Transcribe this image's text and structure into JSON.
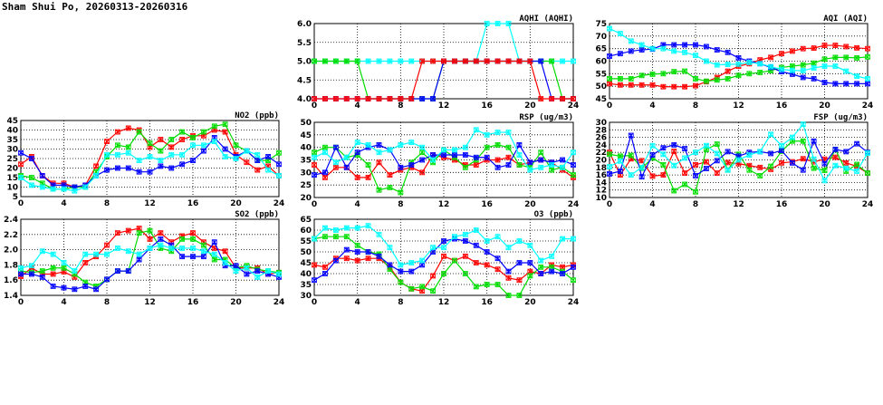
{
  "title": "Sham Shui Po, 20260313-20260316",
  "series_colors": [
    "#ff0000",
    "#00dd00",
    "#0000ff",
    "#00ffff"
  ],
  "chart_data": [
    {
      "id": "no2",
      "type": "line",
      "title": "NO2 (ppb)",
      "xlim": [
        0,
        24
      ],
      "xticks": [
        0,
        4,
        8,
        12,
        16,
        20,
        24
      ],
      "ylim": [
        5,
        45
      ],
      "yticks": [
        5,
        10,
        15,
        20,
        25,
        30,
        35,
        40,
        45
      ],
      "grid": true,
      "series": [
        {
          "name": "red",
          "values": [
            22,
            26,
            16,
            12,
            12,
            10,
            11,
            21,
            34,
            39,
            41,
            40,
            31,
            35,
            31,
            35,
            37,
            37,
            40,
            39,
            27,
            23,
            19,
            21,
            16
          ]
        },
        {
          "name": "green",
          "values": [
            16,
            15,
            12,
            9,
            9,
            10,
            10,
            18,
            26,
            32,
            31,
            39,
            33,
            29,
            35,
            39,
            36,
            39,
            42,
            43,
            32,
            29,
            24,
            24,
            28
          ]
        },
        {
          "name": "blue",
          "values": [
            28,
            25,
            16,
            11,
            11,
            10,
            11,
            16,
            19,
            20,
            20,
            18,
            18,
            21,
            20,
            22,
            24,
            29,
            36,
            30,
            26,
            29,
            24,
            26,
            22
          ]
        },
        {
          "name": "cyan",
          "values": [
            15,
            11,
            10,
            9,
            9,
            8,
            10,
            16,
            27,
            27,
            28,
            24,
            26,
            24,
            27,
            27,
            32,
            32,
            34,
            26,
            25,
            29,
            27,
            19,
            16
          ]
        }
      ]
    },
    {
      "id": "so2",
      "type": "line",
      "title": "SO2 (ppb)",
      "xlim": [
        0,
        24
      ],
      "xticks": [
        0,
        4,
        8,
        12,
        16,
        20,
        24
      ],
      "ylim": [
        1.4,
        2.4
      ],
      "yticks": [
        1.4,
        1.6,
        1.8,
        2.0,
        2.2,
        2.4
      ],
      "grid": true,
      "series": [
        {
          "name": "red",
          "values": [
            1.65,
            1.76,
            1.68,
            1.68,
            1.71,
            1.64,
            1.83,
            1.91,
            2.06,
            2.22,
            2.25,
            2.28,
            2.14,
            2.22,
            2.1,
            2.18,
            2.22,
            2.1,
            2.02,
            1.98,
            1.76,
            1.76,
            1.76,
            1.68,
            1.7
          ]
        },
        {
          "name": "green",
          "values": [
            1.72,
            1.7,
            1.72,
            1.76,
            1.76,
            1.68,
            1.57,
            1.52,
            1.61,
            1.72,
            1.72,
            2.22,
            2.25,
            2.02,
            1.98,
            2.14,
            2.14,
            2.06,
            1.87,
            1.87,
            1.76,
            1.79,
            1.74,
            1.72,
            1.7
          ]
        },
        {
          "name": "blue",
          "values": [
            1.68,
            1.68,
            1.64,
            1.52,
            1.5,
            1.48,
            1.52,
            1.48,
            1.61,
            1.72,
            1.72,
            1.87,
            2.02,
            2.14,
            2.06,
            1.91,
            1.91,
            1.91,
            2.1,
            1.79,
            1.79,
            1.68,
            1.72,
            1.68,
            1.64
          ]
        },
        {
          "name": "cyan",
          "values": [
            1.76,
            1.79,
            1.98,
            1.94,
            1.83,
            1.72,
            1.94,
            1.94,
            1.94,
            2.02,
            1.98,
            1.94,
            2.02,
            2.06,
            2.02,
            2.02,
            2.02,
            1.98,
            1.94,
            1.83,
            1.72,
            1.76,
            1.64,
            1.72,
            1.68
          ]
        }
      ]
    },
    {
      "id": "aqhi",
      "type": "line",
      "title": "AQHI (AQHI)",
      "xlim": [
        0,
        24
      ],
      "xticks": [
        0,
        4,
        8,
        12,
        16,
        20,
        24
      ],
      "ylim": [
        4,
        6
      ],
      "yticks": [
        4.0,
        4.5,
        5.0,
        5.5,
        6.0
      ],
      "grid": true,
      "series": [
        {
          "name": "cyan",
          "values": [
            5,
            5,
            5,
            5,
            5,
            5,
            5,
            5,
            5,
            5,
            5,
            5,
            5,
            5,
            5,
            5,
            6,
            6,
            6,
            5,
            5,
            5,
            5,
            5,
            5
          ]
        },
        {
          "name": "green",
          "values": [
            5,
            5,
            5,
            5,
            5,
            4,
            4,
            4,
            4,
            4,
            4,
            4,
            5,
            5,
            5,
            5,
            5,
            5,
            5,
            5,
            5,
            5,
            5,
            4,
            4
          ]
        },
        {
          "name": "blue",
          "values": [
            4,
            4,
            4,
            4,
            4,
            4,
            4,
            4,
            4,
            4,
            4,
            4,
            5,
            5,
            5,
            5,
            5,
            5,
            5,
            5,
            5,
            5,
            4,
            4,
            4
          ]
        },
        {
          "name": "red",
          "values": [
            4,
            4,
            4,
            4,
            4,
            4,
            4,
            4,
            4,
            4,
            5,
            5,
            5,
            5,
            5,
            5,
            5,
            5,
            5,
            5,
            5,
            4,
            4,
            4,
            4
          ]
        }
      ]
    },
    {
      "id": "rsp",
      "type": "line",
      "title": "RSP (ug/m3)",
      "xlim": [
        0,
        24
      ],
      "xticks": [
        0,
        4,
        8,
        12,
        16,
        20,
        24
      ],
      "ylim": [
        20,
        50
      ],
      "yticks": [
        20,
        25,
        30,
        35,
        40,
        45,
        50
      ],
      "grid": true,
      "series": [
        {
          "name": "red",
          "values": [
            33,
            28,
            32,
            32,
            28,
            28,
            34,
            29,
            31,
            32,
            30,
            37,
            36,
            35,
            33,
            33,
            35,
            35,
            36,
            33,
            34,
            35,
            34,
            31,
            28
          ]
        },
        {
          "name": "green",
          "values": [
            38,
            40,
            40,
            36,
            37,
            33,
            23,
            24,
            22,
            34,
            38,
            34,
            39,
            36,
            32,
            35,
            40,
            41,
            40,
            33,
            32,
            38,
            31,
            32,
            29
          ]
        },
        {
          "name": "blue",
          "values": [
            29,
            30,
            40,
            32,
            38,
            40,
            41,
            39,
            32,
            33,
            35,
            37,
            37,
            37,
            37,
            36,
            36,
            32,
            33,
            41,
            34,
            35,
            34,
            35,
            33
          ]
        },
        {
          "name": "cyan",
          "values": [
            36,
            38,
            34,
            36,
            42,
            41,
            38,
            39,
            41,
            42,
            40,
            35,
            39,
            39,
            40,
            47,
            45,
            46,
            46,
            37,
            31,
            32,
            33,
            32,
            38
          ]
        }
      ]
    },
    {
      "id": "o3",
      "type": "line",
      "title": "O3 (ppb)",
      "xlim": [
        0,
        24
      ],
      "xticks": [
        0,
        4,
        8,
        12,
        16,
        20,
        24
      ],
      "ylim": [
        30,
        65
      ],
      "yticks": [
        30,
        35,
        40,
        45,
        50,
        55,
        60,
        65
      ],
      "grid": true,
      "series": [
        {
          "name": "red",
          "values": [
            44,
            43,
            47,
            47,
            46,
            47,
            47,
            43,
            36,
            33,
            32,
            39,
            48,
            46,
            48,
            45,
            44,
            42,
            38,
            37,
            41,
            40,
            44,
            43,
            44
          ]
        },
        {
          "name": "green",
          "values": [
            56,
            57,
            57,
            57,
            53,
            50,
            49,
            42,
            36,
            33,
            34,
            32,
            40,
            46,
            40,
            34,
            35,
            35,
            30,
            30,
            39,
            43,
            43,
            41,
            37
          ]
        },
        {
          "name": "blue",
          "values": [
            37,
            40,
            46,
            51,
            50,
            50,
            48,
            44,
            41,
            41,
            44,
            50,
            55,
            56,
            55,
            53,
            50,
            47,
            41,
            45,
            45,
            40,
            41,
            40,
            43
          ]
        },
        {
          "name": "cyan",
          "values": [
            56,
            61,
            60,
            61,
            61,
            62,
            58,
            52,
            44,
            45,
            46,
            52,
            52,
            57,
            58,
            60,
            55,
            57,
            52,
            55,
            53,
            46,
            48,
            56,
            56
          ]
        }
      ]
    },
    {
      "id": "aqi",
      "type": "line",
      "title": "AQI (AQI)",
      "xlim": [
        0,
        24
      ],
      "xticks": [
        0,
        4,
        8,
        12,
        16,
        20,
        24
      ],
      "ylim": [
        45,
        75
      ],
      "yticks": [
        45,
        50,
        55,
        60,
        65,
        70,
        75
      ],
      "grid": true,
      "series": [
        {
          "name": "red",
          "values": [
            51,
            50.5,
            50.5,
            50.5,
            50.5,
            49.8,
            49.8,
            49.8,
            50.2,
            51.8,
            53.5,
            56,
            58,
            59,
            60.5,
            61.5,
            63,
            64,
            65,
            65.2,
            66.3,
            66.3,
            65.8,
            65.3,
            65
          ]
        },
        {
          "name": "green",
          "values": [
            53,
            53,
            53,
            54.3,
            54.8,
            55,
            55.8,
            56,
            53,
            52,
            52.5,
            53,
            54.3,
            55,
            55.5,
            56.2,
            57.5,
            58,
            58.5,
            59.2,
            60.8,
            61.5,
            61.5,
            61.3,
            61.7
          ]
        },
        {
          "name": "blue",
          "values": [
            62,
            63,
            64,
            64.5,
            64.8,
            66.5,
            66.5,
            66.5,
            66.5,
            65.8,
            64.5,
            63.5,
            61.3,
            60,
            59,
            57.5,
            55.8,
            54.8,
            53.5,
            53,
            51.5,
            51,
            51,
            51,
            51
          ]
        },
        {
          "name": "cyan",
          "values": [
            73,
            71,
            68,
            66.5,
            65,
            65,
            64,
            63.5,
            62.3,
            60,
            58.5,
            58.7,
            58.8,
            59.5,
            59,
            57.8,
            56.7,
            56.3,
            56.2,
            57.3,
            58,
            58,
            56,
            54,
            53
          ]
        }
      ]
    },
    {
      "id": "fsp",
      "type": "line",
      "title": "FSP (ug/m3)",
      "xlim": [
        0,
        24
      ],
      "xticks": [
        0,
        4,
        8,
        12,
        16,
        20,
        24
      ],
      "ylim": [
        10,
        30
      ],
      "yticks": [
        10,
        12,
        14,
        16,
        18,
        20,
        22,
        24,
        26,
        28,
        30
      ],
      "grid": true,
      "series": [
        {
          "name": "red",
          "values": [
            22,
            16,
            20.3,
            19.8,
            15.7,
            16,
            22.3,
            16.5,
            18.7,
            19.5,
            16.5,
            19.3,
            19,
            18.5,
            18,
            17.5,
            19.2,
            19.5,
            20.3,
            19.5,
            20.2,
            20.7,
            19.2,
            18.3,
            16.5
          ]
        },
        {
          "name": "green",
          "values": [
            21.5,
            21,
            21.2,
            17.8,
            20.5,
            18.7,
            11.8,
            13.5,
            11.5,
            22.8,
            24.2,
            17.3,
            21.5,
            17.3,
            15.8,
            18.3,
            22.3,
            25,
            25,
            17.8,
            17.2,
            22.8,
            17,
            18.8,
            16.5
          ]
        },
        {
          "name": "blue",
          "values": [
            16.3,
            17,
            26.5,
            15.5,
            21.3,
            23.2,
            24,
            23,
            15.8,
            17.7,
            19.8,
            22.2,
            21,
            22,
            22.2,
            21.7,
            22.5,
            19.2,
            17.3,
            25,
            19,
            22.8,
            22.2,
            24.3,
            22
          ]
        },
        {
          "name": "cyan",
          "values": [
            18.2,
            19.7,
            16,
            18,
            23.8,
            21.5,
            18.5,
            20.5,
            22,
            23.8,
            21.7,
            17.3,
            20,
            21.3,
            22.2,
            26.8,
            23.8,
            26,
            29.5,
            20.2,
            14.5,
            18.5,
            17.8,
            17,
            21.8
          ]
        }
      ]
    }
  ]
}
